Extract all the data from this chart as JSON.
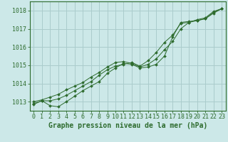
{
  "title": "Graphe pression niveau de la mer (hPa)",
  "bg_color": "#cce8e8",
  "plot_bg_color": "#cce8e8",
  "grid_color": "#aacccc",
  "line_color": "#2d6b2d",
  "xlim_min": -0.5,
  "xlim_max": 23.5,
  "ylim_min": 1012.5,
  "ylim_max": 1018.5,
  "yticks": [
    1013,
    1014,
    1015,
    1016,
    1017,
    1018
  ],
  "xticks": [
    0,
    1,
    2,
    3,
    4,
    5,
    6,
    7,
    8,
    9,
    10,
    11,
    12,
    13,
    14,
    15,
    16,
    17,
    18,
    19,
    20,
    21,
    22,
    23
  ],
  "tick_fontsize": 6,
  "label_fontsize": 7,
  "series": [
    [
      1012.85,
      1013.05,
      1012.78,
      1012.72,
      1013.0,
      1013.3,
      1013.6,
      1013.85,
      1014.1,
      1014.55,
      1014.85,
      1015.1,
      1015.05,
      1014.85,
      1014.9,
      1015.05,
      1015.5,
      1016.55,
      1017.35,
      1017.4,
      1017.45,
      1017.55,
      1017.9,
      1018.1
    ],
    [
      1012.9,
      1013.05,
      1013.05,
      1013.15,
      1013.35,
      1013.6,
      1013.85,
      1014.1,
      1014.45,
      1014.75,
      1014.95,
      1015.05,
      1015.15,
      1014.95,
      1015.25,
      1015.7,
      1016.25,
      1016.65,
      1017.3,
      1017.35,
      1017.45,
      1017.55,
      1017.85,
      1018.1
    ],
    [
      1013.0,
      1013.1,
      1013.25,
      1013.4,
      1013.65,
      1013.85,
      1014.05,
      1014.35,
      1014.6,
      1014.9,
      1015.15,
      1015.2,
      1015.1,
      1014.9,
      1015.05,
      1015.35,
      1015.85,
      1016.3,
      1017.0,
      1017.35,
      1017.5,
      1017.6,
      1017.95,
      1018.1
    ]
  ]
}
